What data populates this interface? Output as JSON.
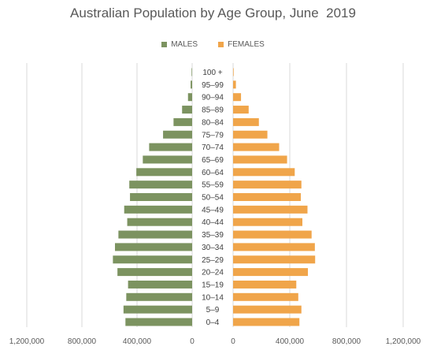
{
  "chart_data": {
    "type": "bar",
    "orientation": "horizontal",
    "title": "Australian Population by Age Group, June  2019",
    "legend_position": "top-center",
    "grid": true,
    "categories": [
      "100 +",
      "95–99",
      "90–94",
      "85–89",
      "80–84",
      "75–79",
      "70–74",
      "65–69",
      "60–64",
      "55–59",
      "50–54",
      "45–49",
      "40–44",
      "35–39",
      "30–34",
      "25–29",
      "20–24",
      "15–19",
      "10–14",
      "5–9",
      "0–4"
    ],
    "series": [
      {
        "name": "MALES",
        "color": "#7c9360",
        "values": [
          4000,
          11000,
          30000,
          73000,
          135000,
          211000,
          312000,
          358000,
          405000,
          456000,
          451000,
          493000,
          471000,
          535000,
          560000,
          575000,
          542000,
          465000,
          478000,
          498000,
          484000
        ]
      },
      {
        "name": "FEMALES",
        "color": "#f0a54a",
        "values": [
          4000,
          20000,
          56000,
          110000,
          182000,
          242000,
          325000,
          381000,
          435000,
          482000,
          478000,
          525000,
          489000,
          554000,
          577000,
          579000,
          528000,
          446000,
          460000,
          482000,
          468000
        ]
      }
    ],
    "xlim_left": [
      0,
      1200000
    ],
    "xlim_right": [
      0,
      1200000
    ],
    "xticks_left": [
      "1,200,000",
      "800,000",
      "400,000",
      "0"
    ],
    "xticks_right": [
      "0",
      "400,000",
      "800,000",
      "1,200,000"
    ]
  }
}
